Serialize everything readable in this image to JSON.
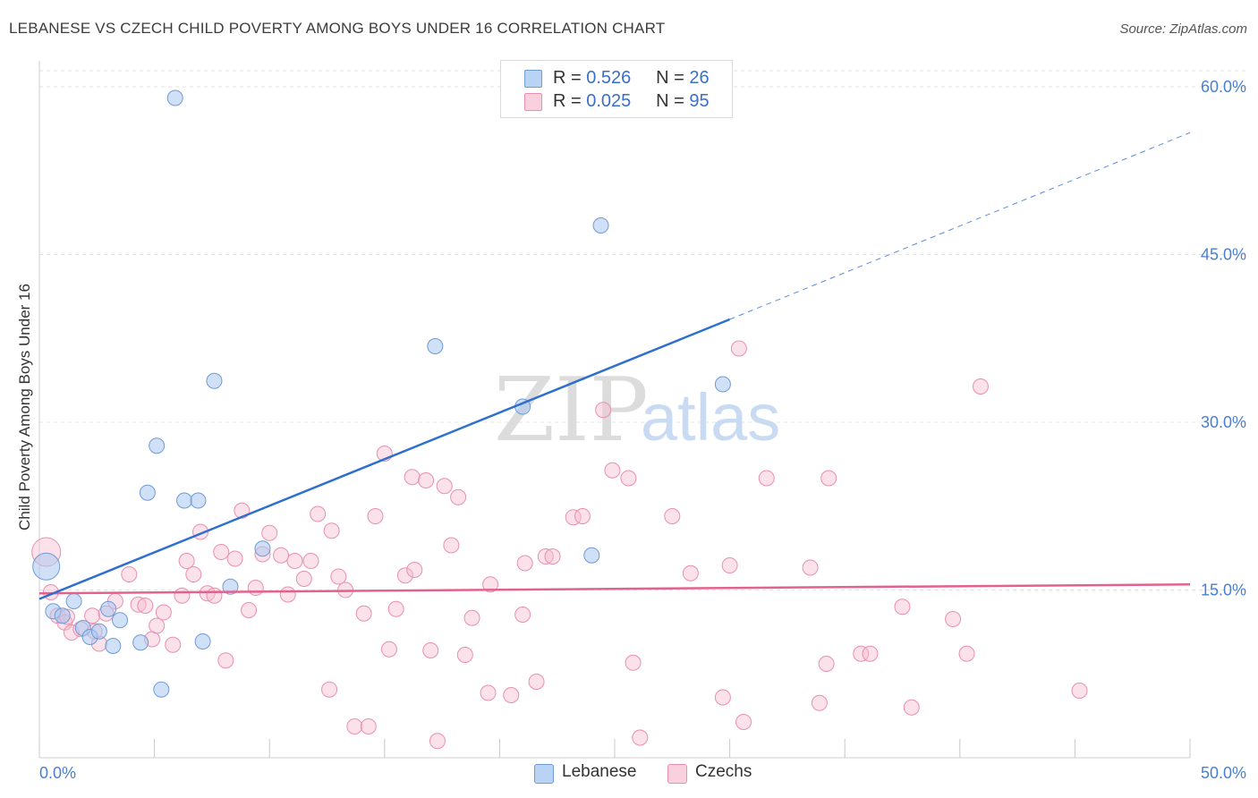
{
  "header": {
    "title": "LEBANESE VS CZECH CHILD POVERTY AMONG BOYS UNDER 16 CORRELATION CHART",
    "source": "Source: ZipAtlas.com"
  },
  "legend": {
    "rows": [
      {
        "r_label": "R =",
        "r_value": "0.526",
        "n_label": "N =",
        "n_value": "26"
      },
      {
        "r_label": "R =",
        "r_value": "0.025",
        "n_label": "N =",
        "n_value": "95"
      }
    ]
  },
  "bottom_legend": {
    "lebanese": "Lebanese",
    "czechs": "Czechs"
  },
  "watermark": {
    "zip": "ZIP",
    "atlas": "atlas"
  },
  "colors": {
    "lebanese_fill": "#a9c8f0",
    "lebanese_stroke": "#6f9bd6",
    "lebanese_line": "#2f6fce",
    "czech_fill": "#f7bcd0",
    "czech_stroke": "#e890ae",
    "czech_line": "#e2628e",
    "tick_text": "#4a7fd0",
    "grid": "#e3e3e3"
  },
  "chart_data": {
    "type": "scatter",
    "title": "LEBANESE VS CZECH CHILD POVERTY AMONG BOYS UNDER 16 CORRELATION CHART",
    "xlabel": "",
    "ylabel": "Child Poverty Among Boys Under 16",
    "xlim": [
      0,
      50
    ],
    "ylim": [
      0,
      60
    ],
    "x_tick_labels": [
      "0.0%",
      "50.0%"
    ],
    "y_ticks": [
      15,
      30,
      45,
      60
    ],
    "y_tick_labels": [
      "15.0%",
      "30.0%",
      "45.0%",
      "60.0%"
    ],
    "grid": true,
    "series": [
      {
        "name": "Lebanese",
        "R": 0.526,
        "N": 26,
        "trend": {
          "x0": 0,
          "y0": 14.2,
          "x1": 30,
          "y1": 39.2,
          "dashed_to_x": 50,
          "dashed_to_y": 55.9
        },
        "points": [
          [
            0.3,
            17.1
          ],
          [
            0.6,
            13.1
          ],
          [
            1.0,
            12.7
          ],
          [
            1.5,
            14.0
          ],
          [
            1.9,
            11.6
          ],
          [
            2.2,
            10.8
          ],
          [
            2.6,
            11.3
          ],
          [
            3.2,
            10.0
          ],
          [
            3.5,
            12.3
          ],
          [
            4.4,
            10.3
          ],
          [
            4.7,
            23.7
          ],
          [
            5.1,
            27.9
          ],
          [
            5.3,
            6.1
          ],
          [
            5.9,
            59.0
          ],
          [
            6.3,
            23.0
          ],
          [
            6.9,
            23.0
          ],
          [
            7.1,
            10.4
          ],
          [
            7.6,
            33.7
          ],
          [
            8.3,
            15.3
          ],
          [
            9.7,
            18.7
          ],
          [
            17.2,
            36.8
          ],
          [
            21.0,
            31.4
          ],
          [
            24.0,
            18.1
          ],
          [
            24.4,
            47.6
          ],
          [
            29.7,
            33.4
          ],
          [
            3.0,
            13.3
          ]
        ]
      },
      {
        "name": "Czechs",
        "R": 0.025,
        "N": 95,
        "trend": {
          "x0": 0,
          "y0": 14.7,
          "x1": 50,
          "y1": 15.5
        },
        "points": [
          [
            0.3,
            18.4
          ],
          [
            0.5,
            14.8
          ],
          [
            0.8,
            12.7
          ],
          [
            1.1,
            12.1
          ],
          [
            1.4,
            11.2
          ],
          [
            1.8,
            11.5
          ],
          [
            2.3,
            12.7
          ],
          [
            2.6,
            10.2
          ],
          [
            2.9,
            12.9
          ],
          [
            3.3,
            14.0
          ],
          [
            3.9,
            16.4
          ],
          [
            4.3,
            13.7
          ],
          [
            4.6,
            13.6
          ],
          [
            4.9,
            10.6
          ],
          [
            5.1,
            11.8
          ],
          [
            5.4,
            13.0
          ],
          [
            5.8,
            10.1
          ],
          [
            6.2,
            14.5
          ],
          [
            6.4,
            17.6
          ],
          [
            6.7,
            16.4
          ],
          [
            7.0,
            20.2
          ],
          [
            7.3,
            14.7
          ],
          [
            7.6,
            14.5
          ],
          [
            7.9,
            18.4
          ],
          [
            8.1,
            8.7
          ],
          [
            8.5,
            17.8
          ],
          [
            8.8,
            22.1
          ],
          [
            9.1,
            13.2
          ],
          [
            9.4,
            15.2
          ],
          [
            9.7,
            18.2
          ],
          [
            10.0,
            20.1
          ],
          [
            10.5,
            18.1
          ],
          [
            10.8,
            14.6
          ],
          [
            11.1,
            17.6
          ],
          [
            11.5,
            16.0
          ],
          [
            11.8,
            17.6
          ],
          [
            12.1,
            21.8
          ],
          [
            12.6,
            6.1
          ],
          [
            12.7,
            20.3
          ],
          [
            13.0,
            16.2
          ],
          [
            13.3,
            15.0
          ],
          [
            13.7,
            2.8
          ],
          [
            14.1,
            12.9
          ],
          [
            14.3,
            2.8
          ],
          [
            14.6,
            21.6
          ],
          [
            15.0,
            27.2
          ],
          [
            15.2,
            9.7
          ],
          [
            15.5,
            13.3
          ],
          [
            15.9,
            16.3
          ],
          [
            16.3,
            16.8
          ],
          [
            16.2,
            25.1
          ],
          [
            16.8,
            24.8
          ],
          [
            17.0,
            9.6
          ],
          [
            17.3,
            1.5
          ],
          [
            17.6,
            24.3
          ],
          [
            17.9,
            19.0
          ],
          [
            18.2,
            23.3
          ],
          [
            18.5,
            9.2
          ],
          [
            18.8,
            12.5
          ],
          [
            19.6,
            15.5
          ],
          [
            19.5,
            5.8
          ],
          [
            20.5,
            5.6
          ],
          [
            21.0,
            12.8
          ],
          [
            21.1,
            17.4
          ],
          [
            21.6,
            6.8
          ],
          [
            22.0,
            18.0
          ],
          [
            22.3,
            18.0
          ],
          [
            23.2,
            21.5
          ],
          [
            23.6,
            21.6
          ],
          [
            24.5,
            31.1
          ],
          [
            24.9,
            25.7
          ],
          [
            25.6,
            25.0
          ],
          [
            25.8,
            8.5
          ],
          [
            26.1,
            1.8
          ],
          [
            27.5,
            21.6
          ],
          [
            28.3,
            16.5
          ],
          [
            29.7,
            5.4
          ],
          [
            30.0,
            17.2
          ],
          [
            30.4,
            36.6
          ],
          [
            30.6,
            3.2
          ],
          [
            31.6,
            25.0
          ],
          [
            33.5,
            17.0
          ],
          [
            33.9,
            4.9
          ],
          [
            34.2,
            8.4
          ],
          [
            34.3,
            25.0
          ],
          [
            35.7,
            9.3
          ],
          [
            36.1,
            9.3
          ],
          [
            37.5,
            13.5
          ],
          [
            37.9,
            4.5
          ],
          [
            39.7,
            12.4
          ],
          [
            40.3,
            9.3
          ],
          [
            40.9,
            33.2
          ],
          [
            45.2,
            6.0
          ],
          [
            2.4,
            11.3
          ],
          [
            1.2,
            12.6
          ]
        ]
      }
    ]
  }
}
